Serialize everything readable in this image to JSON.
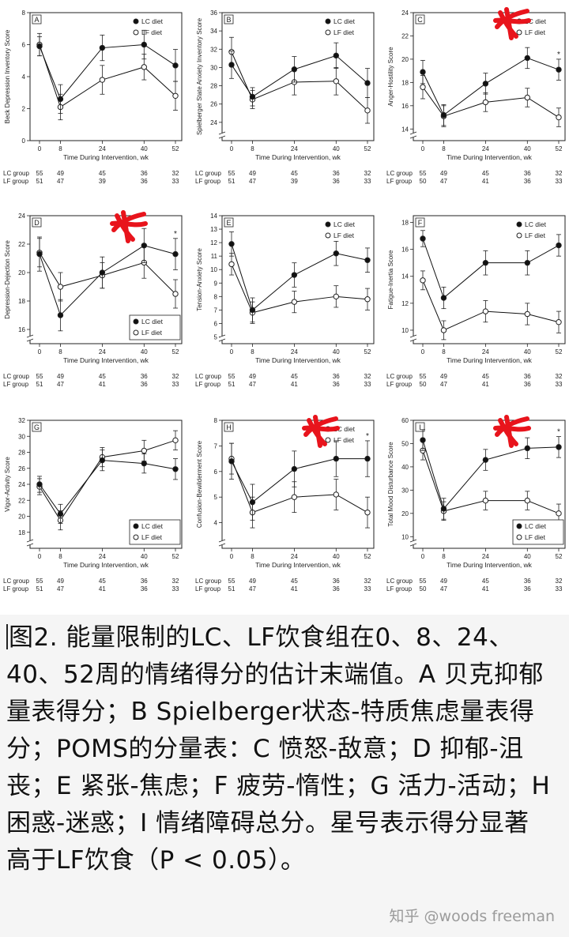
{
  "panels": [
    {
      "letter": "A",
      "ylabel": "Beck Depression Inventory Score",
      "yticks": [
        0,
        2,
        4,
        6,
        8
      ],
      "ylim": [
        0,
        8
      ],
      "break": false,
      "legend": "top",
      "lc": [
        5.9,
        2.6,
        5.8,
        6.0,
        4.7
      ],
      "lc_err": [
        0.6,
        0.9,
        0.8,
        0.9,
        1.0
      ],
      "lf": [
        6.0,
        2.1,
        3.8,
        4.6,
        2.8
      ],
      "lf_err": [
        0.7,
        0.8,
        0.9,
        0.8,
        0.9
      ],
      "star": false,
      "mark": false,
      "counts_lc": [
        "55",
        "49",
        "45",
        "36",
        "32"
      ],
      "counts_lf": [
        "51",
        "47",
        "39",
        "36",
        "33"
      ]
    },
    {
      "letter": "B",
      "ylabel": "Spielberger State Anxiety Inventory Score",
      "yticks": [
        24,
        26,
        28,
        30,
        32,
        34,
        36
      ],
      "ylim": [
        22,
        36
      ],
      "break": true,
      "legend": "top",
      "lc": [
        30.3,
        26.8,
        29.8,
        31.3,
        28.3
      ],
      "lc_err": [
        1.5,
        1.0,
        1.4,
        1.4,
        1.6
      ],
      "lf": [
        31.7,
        26.5,
        28.4,
        28.5,
        25.3
      ],
      "lf_err": [
        1.6,
        1.0,
        1.4,
        1.5,
        1.4
      ],
      "star": false,
      "mark": false,
      "counts_lc": [
        "55",
        "49",
        "45",
        "36",
        "32"
      ],
      "counts_lf": [
        "51",
        "47",
        "39",
        "36",
        "33"
      ]
    },
    {
      "letter": "C",
      "ylabel": "Anger-Hostility Score",
      "yticks": [
        14,
        16,
        18,
        20,
        22,
        24
      ],
      "ylim": [
        13,
        24
      ],
      "break": true,
      "legend": "top",
      "lc": [
        18.9,
        15.2,
        17.9,
        20.1,
        19.1
      ],
      "lc_err": [
        1.0,
        0.9,
        0.9,
        0.9,
        0.9
      ],
      "lf": [
        17.6,
        15.1,
        16.3,
        16.7,
        15.0
      ],
      "lf_err": [
        1.0,
        0.9,
        0.8,
        0.8,
        0.8
      ],
      "star": true,
      "mark": true,
      "counts_lc": [
        "55",
        "49",
        "45",
        "36",
        "32"
      ],
      "counts_lf": [
        "50",
        "47",
        "41",
        "36",
        "33"
      ]
    },
    {
      "letter": "D",
      "ylabel": "Depression-Dejection Score",
      "yticks": [
        16,
        18,
        20,
        22,
        24
      ],
      "ylim": [
        15,
        24
      ],
      "break": true,
      "legend": "bottom",
      "lc": [
        21.3,
        17.0,
        20.0,
        21.9,
        21.3
      ],
      "lc_err": [
        1.2,
        1.1,
        1.1,
        1.2,
        1.1
      ],
      "lf": [
        21.4,
        19.0,
        19.8,
        20.7,
        18.5
      ],
      "lf_err": [
        1.0,
        1.0,
        0.9,
        1.1,
        1.0
      ],
      "star": true,
      "mark": true,
      "counts_lc": [
        "55",
        "49",
        "45",
        "36",
        "32"
      ],
      "counts_lf": [
        "51",
        "47",
        "41",
        "36",
        "33"
      ]
    },
    {
      "letter": "E",
      "ylabel": "Tension-Anxiety Score",
      "yticks": [
        5,
        6,
        7,
        8,
        9,
        10,
        11,
        12,
        13,
        14
      ],
      "ylim": [
        4.5,
        14
      ],
      "break": true,
      "legend": "top",
      "lc": [
        11.9,
        7.0,
        9.6,
        11.2,
        10.7
      ],
      "lc_err": [
        0.9,
        0.9,
        0.9,
        0.9,
        0.9
      ],
      "lf": [
        10.4,
        6.8,
        7.6,
        8.0,
        7.8
      ],
      "lf_err": [
        0.8,
        0.8,
        0.8,
        0.8,
        0.8
      ],
      "star": false,
      "mark": false,
      "counts_lc": [
        "55",
        "49",
        "45",
        "36",
        "32"
      ],
      "counts_lf": [
        "51",
        "47",
        "41",
        "36",
        "33"
      ]
    },
    {
      "letter": "F",
      "ylabel": "Fatigue-Inertia Score",
      "yticks": [
        10,
        12,
        14,
        16,
        18
      ],
      "ylim": [
        9,
        18.5
      ],
      "break": true,
      "legend": "top",
      "lc": [
        16.8,
        12.4,
        15.0,
        15.0,
        16.3
      ],
      "lc_err": [
        0.6,
        0.8,
        0.9,
        0.9,
        0.8
      ],
      "lf": [
        13.7,
        10.0,
        11.4,
        11.2,
        10.6
      ],
      "lf_err": [
        0.7,
        0.7,
        0.8,
        0.8,
        0.8
      ],
      "star": false,
      "mark": false,
      "counts_lc": [
        "55",
        "49",
        "45",
        "36",
        "32"
      ],
      "counts_lf": [
        "50",
        "47",
        "41",
        "36",
        "33"
      ]
    },
    {
      "letter": "G",
      "ylabel": "Vigor-Activity Score",
      "yticks": [
        18,
        20,
        22,
        24,
        26,
        28,
        30,
        32
      ],
      "ylim": [
        16,
        32
      ],
      "break": true,
      "legend": "bottom",
      "lc": [
        24.0,
        20.3,
        27.0,
        26.6,
        25.9
      ],
      "lc_err": [
        1.0,
        1.2,
        1.3,
        1.2,
        1.3
      ],
      "lf": [
        23.7,
        19.5,
        27.4,
        28.2,
        29.5
      ],
      "lf_err": [
        1.0,
        1.2,
        1.2,
        1.3,
        1.2
      ],
      "star": false,
      "mark": false,
      "counts_lc": [
        "55",
        "49",
        "45",
        "36",
        "32"
      ],
      "counts_lf": [
        "51",
        "47",
        "41",
        "36",
        "33"
      ]
    },
    {
      "letter": "H",
      "ylabel": "Confusion-Bewilderment Score",
      "yticks": [
        4,
        5,
        6,
        7,
        8
      ],
      "ylim": [
        3,
        8
      ],
      "break": true,
      "legend": "top",
      "lc": [
        6.4,
        4.8,
        6.1,
        6.5,
        6.5
      ],
      "lc_err": [
        0.7,
        0.7,
        0.7,
        0.7,
        0.7
      ],
      "lf": [
        6.5,
        4.4,
        5.0,
        5.1,
        4.4
      ],
      "lf_err": [
        0.6,
        0.6,
        0.6,
        0.6,
        0.6
      ],
      "star": true,
      "mark": true,
      "counts_lc": [
        "55",
        "49",
        "45",
        "36",
        "32"
      ],
      "counts_lf": [
        "51",
        "47",
        "41",
        "36",
        "33"
      ]
    },
    {
      "letter": "I",
      "ylabel": "Total Mood Disturbance Score",
      "yticks": [
        10,
        20,
        30,
        40,
        50,
        60
      ],
      "ylim": [
        5,
        60
      ],
      "break": true,
      "legend": "bottom",
      "lc": [
        51.5,
        22.0,
        43.0,
        48.0,
        48.5
      ],
      "lc_err": [
        4.5,
        4.5,
        4.5,
        4.5,
        4.5
      ],
      "lf": [
        47.0,
        21.0,
        25.5,
        25.5,
        20.0
      ],
      "lf_err": [
        4.0,
        4.0,
        4.0,
        4.0,
        4.0
      ],
      "star": true,
      "mark": true,
      "counts_lc": [
        "55",
        "49",
        "45",
        "36",
        "32"
      ],
      "counts_lf": [
        "50",
        "47",
        "41",
        "36",
        "33"
      ]
    }
  ],
  "chart_data": [
    {
      "type": "line",
      "title": "A",
      "xlabel": "Time During Intervention, wk",
      "ylabel": "Beck Depression Inventory Score",
      "x": [
        0,
        8,
        24,
        40,
        52
      ],
      "ylim": [
        0,
        8
      ],
      "series": [
        {
          "name": "LC diet",
          "values": [
            5.9,
            2.6,
            5.8,
            6.0,
            4.7
          ]
        },
        {
          "name": "LF diet",
          "values": [
            6.0,
            2.1,
            3.8,
            4.6,
            2.8
          ]
        }
      ]
    },
    {
      "type": "line",
      "title": "B",
      "xlabel": "Time During Intervention, wk",
      "ylabel": "Spielberger State Anxiety Inventory Score",
      "x": [
        0,
        8,
        24,
        40,
        52
      ],
      "ylim": [
        22,
        36
      ],
      "series": [
        {
          "name": "LC diet",
          "values": [
            30.3,
            26.8,
            29.8,
            31.3,
            28.3
          ]
        },
        {
          "name": "LF diet",
          "values": [
            31.7,
            26.5,
            28.4,
            28.5,
            25.3
          ]
        }
      ]
    },
    {
      "type": "line",
      "title": "C",
      "xlabel": "Time During Intervention, wk",
      "ylabel": "Anger-Hostility Score",
      "x": [
        0,
        8,
        24,
        40,
        52
      ],
      "ylim": [
        13,
        24
      ],
      "series": [
        {
          "name": "LC diet",
          "values": [
            18.9,
            15.2,
            17.9,
            20.1,
            19.1
          ]
        },
        {
          "name": "LF diet",
          "values": [
            17.6,
            15.1,
            16.3,
            16.7,
            15.0
          ]
        }
      ]
    },
    {
      "type": "line",
      "title": "D",
      "xlabel": "Time During Intervention, wk",
      "ylabel": "Depression-Dejection Score",
      "x": [
        0,
        8,
        24,
        40,
        52
      ],
      "ylim": [
        15,
        24
      ],
      "series": [
        {
          "name": "LC diet",
          "values": [
            21.3,
            17.0,
            20.0,
            21.9,
            21.3
          ]
        },
        {
          "name": "LF diet",
          "values": [
            21.4,
            19.0,
            19.8,
            20.7,
            18.5
          ]
        }
      ]
    },
    {
      "type": "line",
      "title": "E",
      "xlabel": "Time During Intervention, wk",
      "ylabel": "Tension-Anxiety Score",
      "x": [
        0,
        8,
        24,
        40,
        52
      ],
      "ylim": [
        4.5,
        14
      ],
      "series": [
        {
          "name": "LC diet",
          "values": [
            11.9,
            7.0,
            9.6,
            11.2,
            10.7
          ]
        },
        {
          "name": "LF diet",
          "values": [
            10.4,
            6.8,
            7.6,
            8.0,
            7.8
          ]
        }
      ]
    },
    {
      "type": "line",
      "title": "F",
      "xlabel": "Time During Intervention, wk",
      "ylabel": "Fatigue-Inertia Score",
      "x": [
        0,
        8,
        24,
        40,
        52
      ],
      "ylim": [
        9,
        18.5
      ],
      "series": [
        {
          "name": "LC diet",
          "values": [
            16.8,
            12.4,
            15.0,
            15.0,
            16.3
          ]
        },
        {
          "name": "LF diet",
          "values": [
            13.7,
            10.0,
            11.4,
            11.2,
            10.6
          ]
        }
      ]
    },
    {
      "type": "line",
      "title": "G",
      "xlabel": "Time During Intervention, wk",
      "ylabel": "Vigor-Activity Score",
      "x": [
        0,
        8,
        24,
        40,
        52
      ],
      "ylim": [
        16,
        32
      ],
      "series": [
        {
          "name": "LC diet",
          "values": [
            24.0,
            20.3,
            27.0,
            26.6,
            25.9
          ]
        },
        {
          "name": "LF diet",
          "values": [
            23.7,
            19.5,
            27.4,
            28.2,
            29.5
          ]
        }
      ]
    },
    {
      "type": "line",
      "title": "H",
      "xlabel": "Time During Intervention, wk",
      "ylabel": "Confusion-Bewilderment Score",
      "x": [
        0,
        8,
        24,
        40,
        52
      ],
      "ylim": [
        3,
        8
      ],
      "series": [
        {
          "name": "LC diet",
          "values": [
            6.4,
            4.8,
            6.1,
            6.5,
            6.5
          ]
        },
        {
          "name": "LF diet",
          "values": [
            6.5,
            4.4,
            5.0,
            5.1,
            4.4
          ]
        }
      ]
    },
    {
      "type": "line",
      "title": "I",
      "xlabel": "Time During Intervention, wk",
      "ylabel": "Total Mood Disturbance Score",
      "x": [
        0,
        8,
        24,
        40,
        52
      ],
      "ylim": [
        5,
        60
      ],
      "series": [
        {
          "name": "LC diet",
          "values": [
            51.5,
            22.0,
            43.0,
            48.0,
            48.5
          ]
        },
        {
          "name": "LF diet",
          "values": [
            47.0,
            21.0,
            25.5,
            25.5,
            20.0
          ]
        }
      ]
    }
  ],
  "common": {
    "xlabel": "Time During Intervention, wk",
    "xticks": [
      0,
      8,
      24,
      40,
      52
    ],
    "legend_lc": "LC diet",
    "legend_lf": "LF diet",
    "star": "*",
    "row_lc": "LC group",
    "row_lf": "LF group",
    "colors": {
      "lc": "#111111",
      "lf": "#111111",
      "axis": "#222222",
      "mark": "#e8141c"
    }
  },
  "caption": {
    "text": "图2. 能量限制的LC、LF饮食组在0、8、24、40、52周的情绪得分的估计末端值。A 贝克抑郁量表得分；B Spielberger状态-特质焦虑量表得分；POMS的分量表：C 愤怒-敌意；D 抑郁-沮丧；E 紧张-焦虑；F 疲劳-惰性；G 活力-活动；H 困惑-迷惑；I 情绪障碍总分。星号表示得分显著高于LF饮食（P < 0.05）。"
  },
  "watermark": "知乎 @woods freeman"
}
